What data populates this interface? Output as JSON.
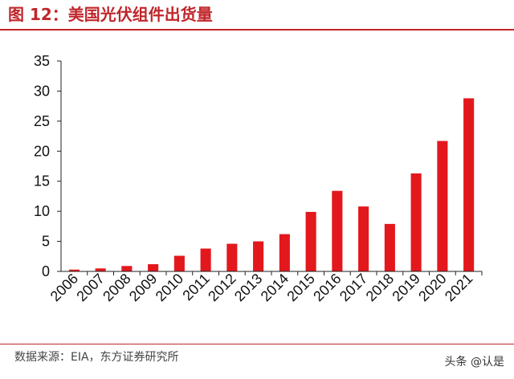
{
  "title": "图 12：美国光伏组件出货量",
  "source": "数据来源：EIA，东方证券研究所",
  "watermark": "头条 @认是",
  "colors": {
    "bar": "#e3181d",
    "accent": "#c0262b",
    "axis": "#222222"
  },
  "chart_data": {
    "type": "bar",
    "title": "",
    "xlabel": "",
    "ylabel": "",
    "ylim": [
      0,
      35
    ],
    "yticks": [
      0,
      5,
      10,
      15,
      20,
      25,
      30,
      35
    ],
    "grid": false,
    "legend": "none",
    "categories": [
      "2006",
      "2007",
      "2008",
      "2009",
      "2010",
      "2011",
      "2012",
      "2013",
      "2014",
      "2015",
      "2016",
      "2017",
      "2018",
      "2019",
      "2020",
      "2021"
    ],
    "values": [
      0.3,
      0.5,
      0.9,
      1.2,
      2.6,
      3.8,
      4.6,
      5.0,
      6.2,
      9.9,
      13.4,
      10.8,
      7.9,
      16.3,
      21.7,
      28.8
    ]
  }
}
